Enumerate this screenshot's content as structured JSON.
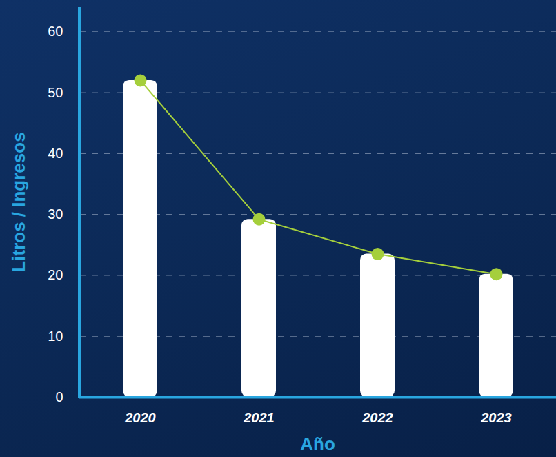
{
  "chart_data": {
    "type": "bar",
    "x_label": "Año",
    "y_label": "Litros / Ingresos",
    "categories": [
      "2020",
      "2021",
      "2022",
      "2023"
    ],
    "series": [
      {
        "type": "bar",
        "color": "#ffffff",
        "values": [
          52,
          29.2,
          23.5,
          20.2
        ]
      },
      {
        "type": "line",
        "color": "#a5cf3c",
        "marker": "circle",
        "values": [
          52,
          29.2,
          23.5,
          20.2
        ]
      }
    ],
    "ylim": [
      0,
      64
    ],
    "yticks": [
      0,
      10,
      20,
      30,
      40,
      50,
      60
    ],
    "grid": true
  }
}
